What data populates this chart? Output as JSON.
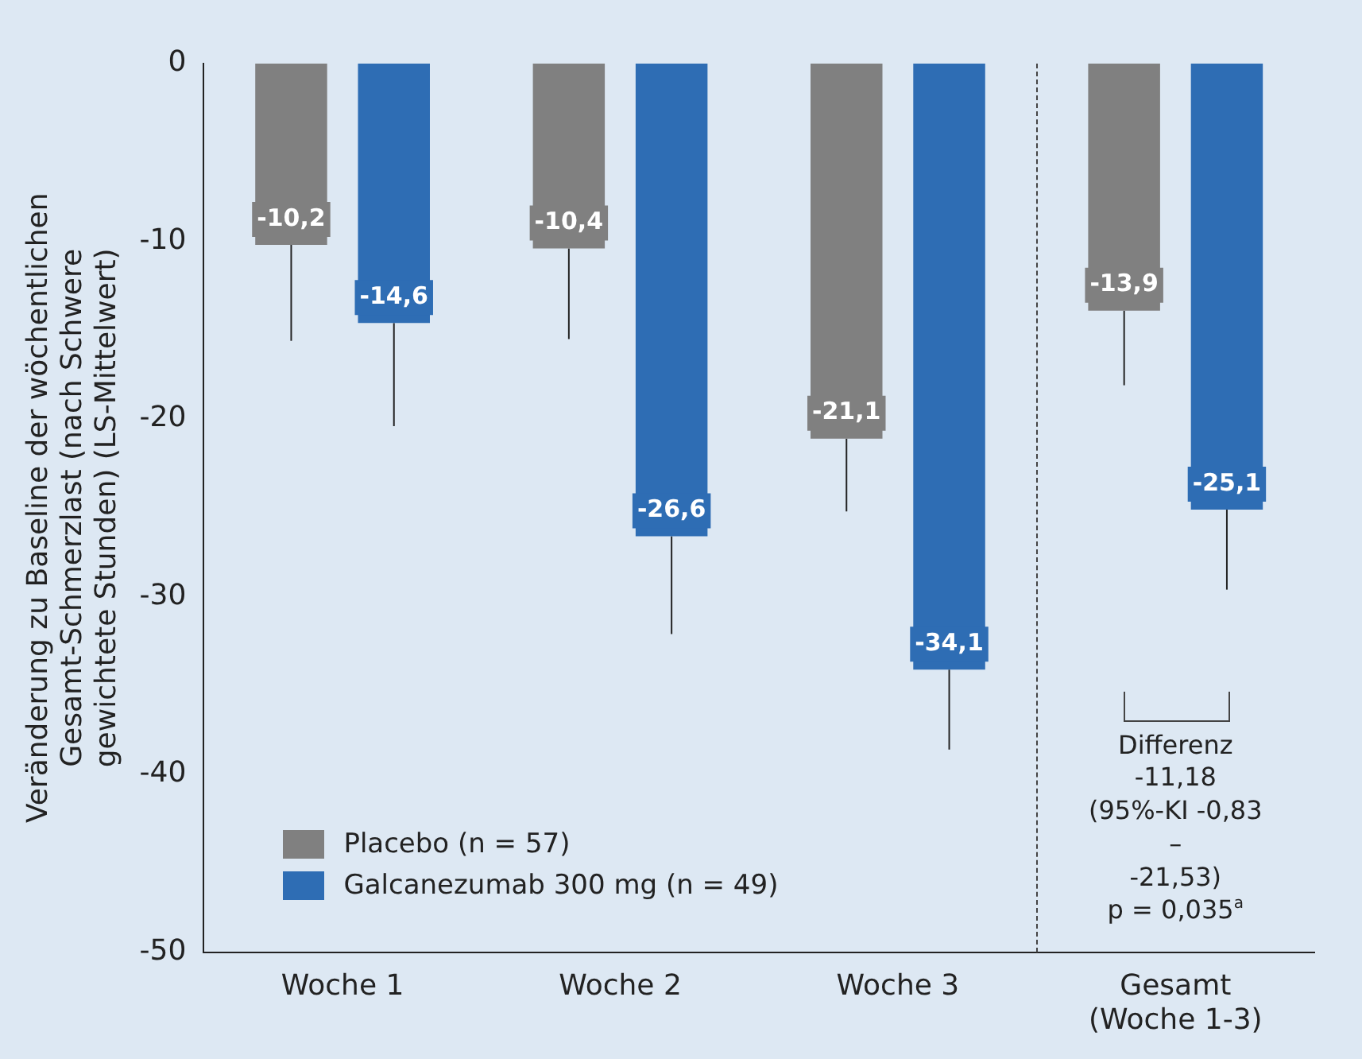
{
  "chart_data": {
    "type": "bar",
    "ylabel": "Veränderung zu Baseline der wöchentlichen\nGesamt-Schmerzlast (nach Schwere\ngewichtete Stunden) (LS-Mittelwert)",
    "categories": [
      "Woche 1",
      "Woche 2",
      "Woche 3",
      "Gesamt\n(Woche 1-3)"
    ],
    "series": [
      {
        "name": "Placebo (n = 57)",
        "color": "#808080",
        "values": [
          -10.2,
          -10.4,
          -21.1,
          -13.9
        ],
        "value_labels": [
          "-10,2",
          "-10,4",
          "-21,1",
          "-13,9"
        ],
        "errors": [
          [
            -15.6,
            -10.2
          ],
          [
            -15.5,
            -10.4
          ],
          [
            -25.2,
            -21.1
          ],
          [
            -18.1,
            -13.9
          ]
        ]
      },
      {
        "name": "Galcanezumab 300 mg (n = 49)",
        "color": "#2e6db4",
        "values": [
          -14.6,
          -26.6,
          -34.1,
          -25.1
        ],
        "value_labels": [
          "-14,6",
          "-26,6",
          "-34,1",
          "-25,1"
        ],
        "errors": [
          [
            -20.4,
            -14.6
          ],
          [
            -32.1,
            -26.6
          ],
          [
            -38.6,
            -34.1
          ],
          [
            -29.6,
            -25.1
          ]
        ]
      }
    ],
    "ylim": [
      -50,
      0
    ],
    "yticks": [
      0,
      -10,
      -20,
      -30,
      -40,
      -50
    ],
    "grid": false,
    "legend": "bottom left",
    "annotations": [
      "Differenz -11,18\n(95%-KI -0,83 –\n-21,53)\np = 0,035$^{a}$"
    ]
  }
}
